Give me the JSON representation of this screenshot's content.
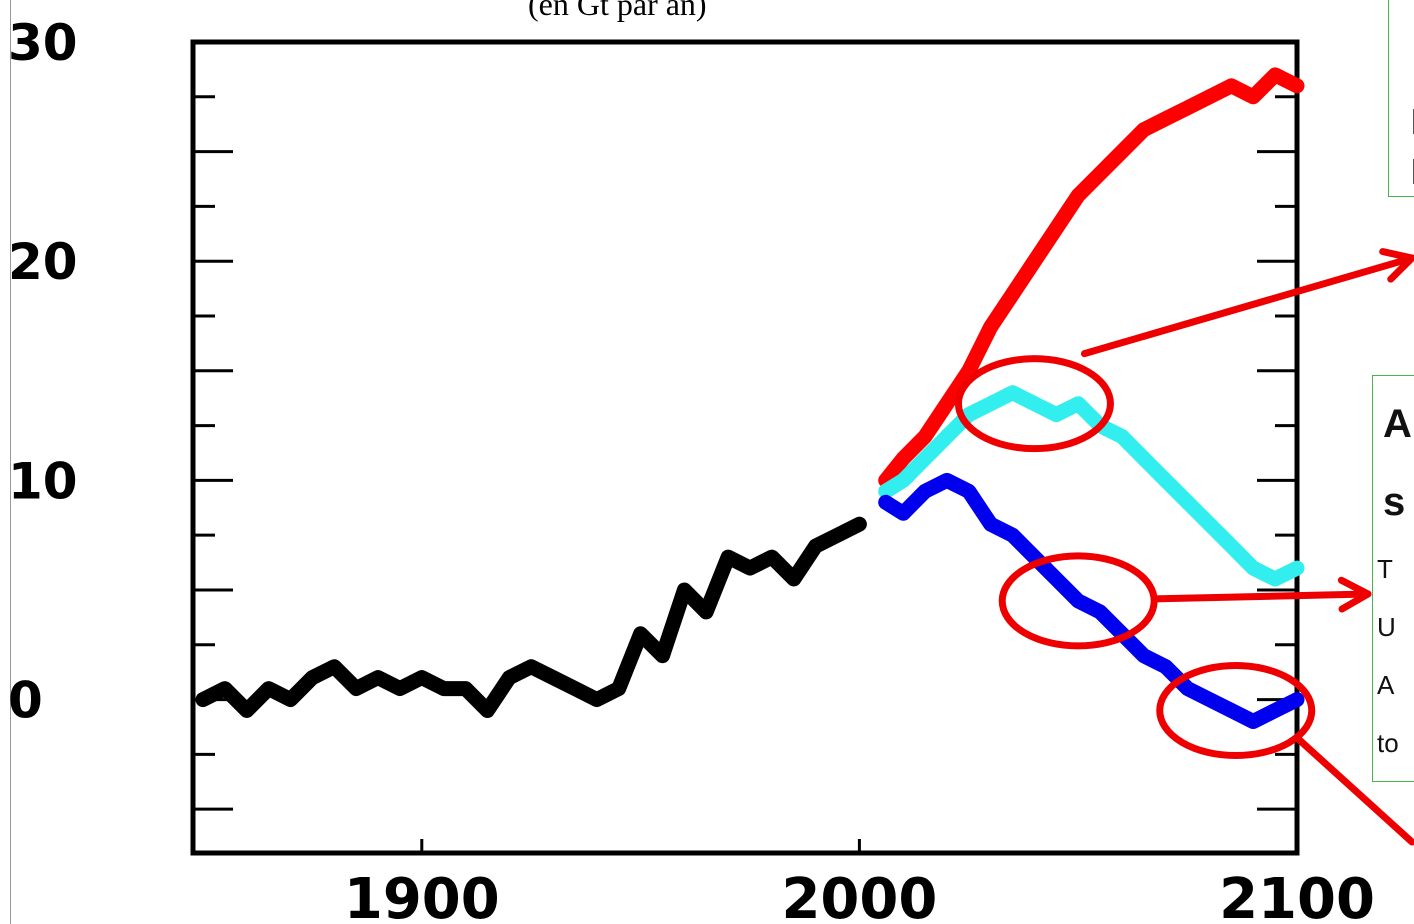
{
  "subtitle": "(en Gt par an)",
  "callout_top": {
    "lines": [
      "l",
      "l"
    ]
  },
  "callout_right": {
    "lines_bold": [
      "A",
      "s"
    ],
    "lines": [
      "T",
      "U",
      "A",
      "to"
    ]
  },
  "colors": {
    "historical": "#000000",
    "high_scenario": "#ff0000",
    "mid_scenario": "#33eeee",
    "low_scenario": "#0000ee",
    "highlight": "#ee0000",
    "callout_border": "#4caf50"
  },
  "chart_data": {
    "type": "line",
    "title": "",
    "xlabel": "",
    "ylabel": "",
    "xlim": [
      1850,
      2100
    ],
    "ylim": [
      -7,
      30
    ],
    "xticks": [
      1900,
      2000,
      2100
    ],
    "xtick_labels": [
      "1900",
      "2000",
      "2100"
    ],
    "yticks": [
      0,
      10,
      20,
      30
    ],
    "ytick_labels": [
      "0",
      "10",
      "20",
      "30"
    ],
    "grid": false,
    "series": [
      {
        "id": "historical",
        "color": "#000000",
        "x": [
          1850,
          1855,
          1860,
          1865,
          1870,
          1875,
          1880,
          1885,
          1890,
          1895,
          1900,
          1905,
          1910,
          1915,
          1920,
          1925,
          1930,
          1935,
          1940,
          1945,
          1950,
          1955,
          1960,
          1965,
          1970,
          1975,
          1980,
          1985,
          1990,
          1995,
          2000
        ],
        "y": [
          0.0,
          0.5,
          -0.5,
          0.5,
          0.0,
          1.0,
          1.5,
          0.5,
          1.0,
          0.5,
          1.0,
          0.5,
          0.5,
          -0.5,
          1.0,
          1.5,
          1.0,
          0.5,
          0.0,
          0.5,
          3.0,
          2.0,
          5.0,
          4.0,
          6.5,
          6.0,
          6.5,
          5.5,
          7.0,
          7.5,
          8.0
        ]
      },
      {
        "id": "high",
        "color": "#ff0000",
        "x": [
          2006,
          2010,
          2015,
          2020,
          2025,
          2030,
          2035,
          2040,
          2045,
          2050,
          2055,
          2060,
          2065,
          2070,
          2075,
          2080,
          2085,
          2090,
          2095,
          2100
        ],
        "y": [
          10.0,
          11.0,
          12.0,
          13.5,
          15.0,
          17.0,
          18.5,
          20.0,
          21.5,
          23.0,
          24.0,
          25.0,
          26.0,
          26.5,
          27.0,
          27.5,
          28.0,
          27.5,
          28.5,
          28.0
        ]
      },
      {
        "id": "mid",
        "color": "#33eeee",
        "x": [
          2006,
          2010,
          2015,
          2020,
          2025,
          2030,
          2035,
          2040,
          2045,
          2050,
          2055,
          2060,
          2065,
          2070,
          2075,
          2080,
          2085,
          2090,
          2095,
          2100
        ],
        "y": [
          9.5,
          10.0,
          11.0,
          12.0,
          13.0,
          13.5,
          14.0,
          13.5,
          13.0,
          13.5,
          12.5,
          12.0,
          11.0,
          10.0,
          9.0,
          8.0,
          7.0,
          6.0,
          5.5,
          6.0
        ]
      },
      {
        "id": "low",
        "color": "#0000ee",
        "x": [
          2006,
          2010,
          2015,
          2020,
          2025,
          2030,
          2035,
          2040,
          2045,
          2050,
          2055,
          2060,
          2065,
          2070,
          2075,
          2080,
          2085,
          2090,
          2095,
          2100
        ],
        "y": [
          9.0,
          8.5,
          9.5,
          10.0,
          9.5,
          8.0,
          7.5,
          6.5,
          5.5,
          4.5,
          4.0,
          3.0,
          2.0,
          1.5,
          0.5,
          0.0,
          -0.5,
          -1.0,
          -0.5,
          0.0
        ]
      }
    ],
    "highlights": [
      {
        "x": 2040,
        "y": 13.5
      },
      {
        "x": 2050,
        "y": 4.5
      },
      {
        "x": 2086,
        "y": -0.5
      }
    ]
  }
}
